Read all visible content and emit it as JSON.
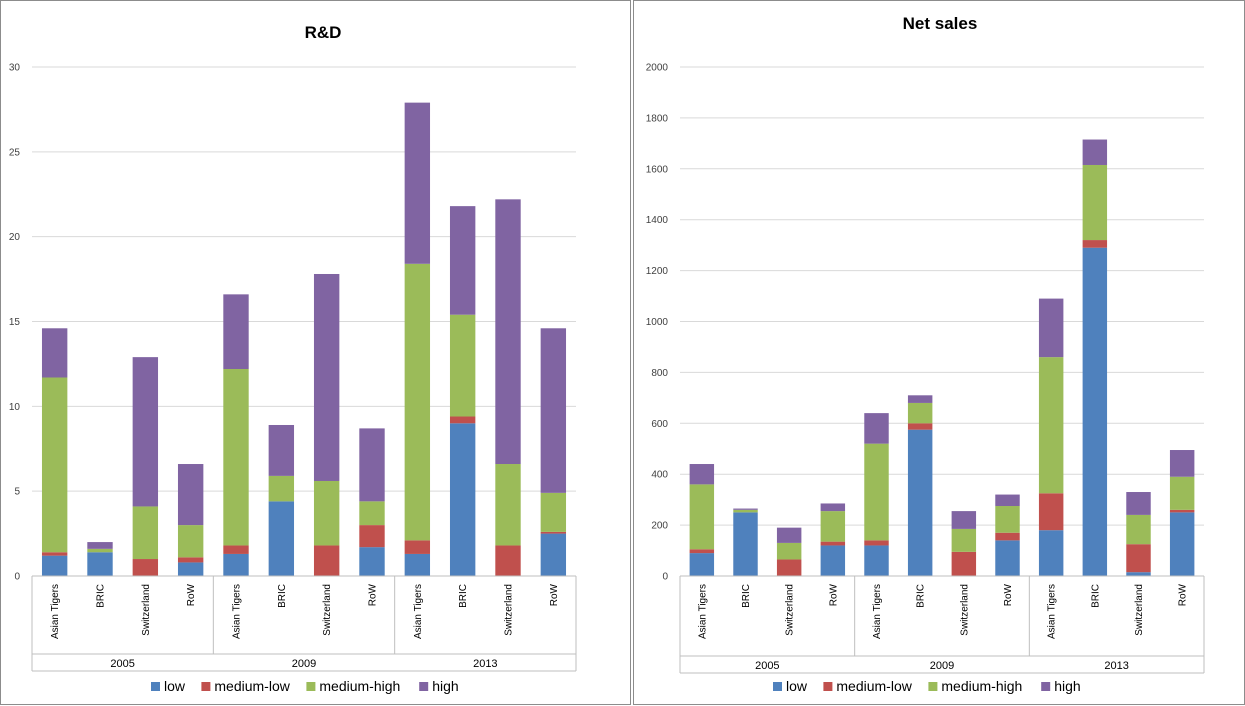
{
  "charts": [
    {
      "chart_data": {
        "type": "bar",
        "stacked": true,
        "title": "R&D",
        "xlabel": "",
        "ylabel": "",
        "ylim": [
          0,
          30
        ],
        "yticks": [
          "0",
          "5",
          "10",
          "15",
          "20",
          "25",
          "30"
        ],
        "grid": true,
        "legend_position": "bottom",
        "groups": [
          {
            "label": "2005",
            "categories": [
              "Asian Tigers",
              "BRIC",
              "Switzerland",
              "RoW"
            ]
          },
          {
            "label": "2009",
            "categories": [
              "Asian Tigers",
              "BRIC",
              "Switzerland",
              "RoW"
            ]
          },
          {
            "label": "2013",
            "categories": [
              "Asian Tigers",
              "BRIC",
              "Switzerland",
              "RoW"
            ]
          }
        ],
        "series": [
          {
            "name": "low",
            "color": "#4f81bd",
            "values": [
              1.2,
              1.4,
              0.0,
              0.8,
              1.3,
              4.4,
              0.0,
              1.7,
              1.3,
              9.0,
              0.0,
              2.5
            ]
          },
          {
            "name": "medium-low",
            "color": "#c0504d",
            "values": [
              0.2,
              0.0,
              1.0,
              0.3,
              0.5,
              0.0,
              1.8,
              1.3,
              0.8,
              0.4,
              1.8,
              0.1
            ]
          },
          {
            "name": "medium-high",
            "color": "#9bbb59",
            "values": [
              10.3,
              0.2,
              3.1,
              1.9,
              10.4,
              1.5,
              3.8,
              1.4,
              16.3,
              6.0,
              4.8,
              2.3
            ]
          },
          {
            "name": "high",
            "color": "#8064a2",
            "values": [
              2.9,
              0.4,
              8.8,
              3.6,
              4.4,
              3.0,
              12.2,
              4.3,
              9.5,
              6.4,
              15.6,
              9.7
            ]
          }
        ]
      }
    },
    {
      "chart_data": {
        "type": "bar",
        "stacked": true,
        "title": "Net sales",
        "xlabel": "",
        "ylabel": "",
        "ylim": [
          0,
          2000
        ],
        "yticks": [
          "0",
          "200",
          "400",
          "600",
          "800",
          "1000",
          "1200",
          "1400",
          "1600",
          "1800",
          "2000"
        ],
        "grid": true,
        "legend_position": "bottom",
        "groups": [
          {
            "label": "2005",
            "categories": [
              "Asian Tigers",
              "BRIC",
              "Switzerland",
              "RoW"
            ]
          },
          {
            "label": "2009",
            "categories": [
              "Asian Tigers",
              "BRIC",
              "Switzerland",
              "RoW"
            ]
          },
          {
            "label": "2013",
            "categories": [
              "Asian Tigers",
              "BRIC",
              "Switzerland",
              "RoW"
            ]
          }
        ],
        "series": [
          {
            "name": "low",
            "color": "#4f81bd",
            "values": [
              90,
              250,
              0,
              120,
              120,
              575,
              0,
              140,
              180,
              1290,
              15,
              250
            ]
          },
          {
            "name": "medium-low",
            "color": "#c0504d",
            "values": [
              15,
              0,
              65,
              15,
              20,
              25,
              95,
              30,
              145,
              30,
              110,
              10
            ]
          },
          {
            "name": "medium-high",
            "color": "#9bbb59",
            "values": [
              255,
              10,
              65,
              120,
              380,
              80,
              90,
              105,
              535,
              295,
              115,
              130
            ]
          },
          {
            "name": "high",
            "color": "#8064a2",
            "values": [
              80,
              5,
              60,
              30,
              120,
              30,
              70,
              45,
              230,
              100,
              90,
              105
            ]
          }
        ]
      }
    }
  ]
}
